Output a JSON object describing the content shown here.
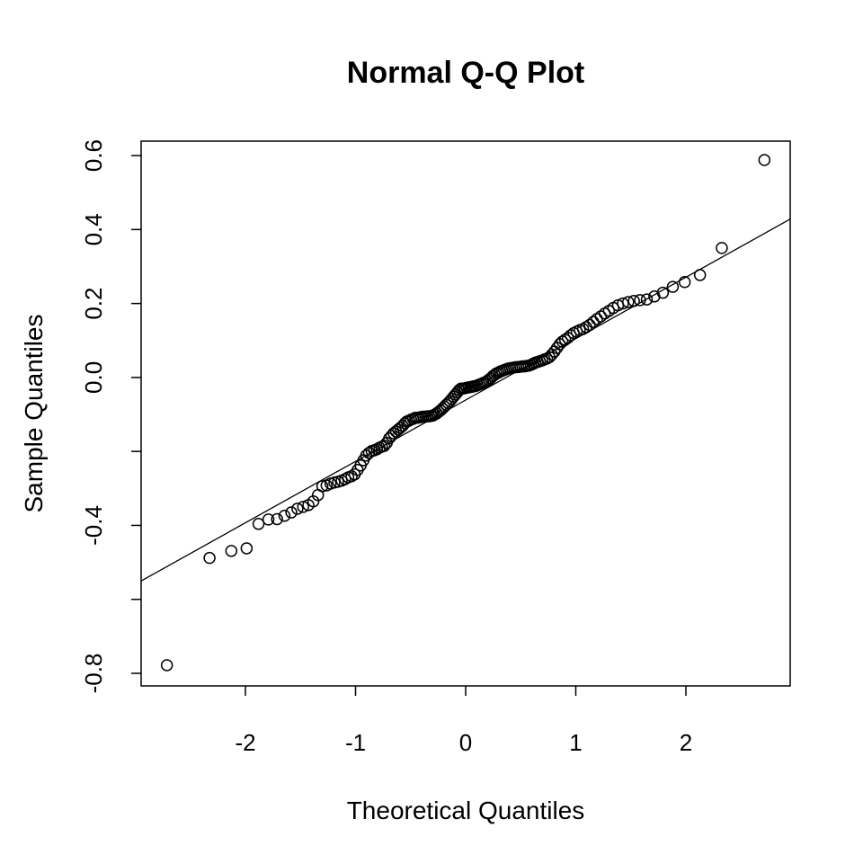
{
  "chart_data": {
    "type": "scatter",
    "title": "Normal Q-Q Plot",
    "x_label": "Theoretical Quantiles",
    "y_label": "Sample Quantiles",
    "xlim": [
      -2.947,
      2.947
    ],
    "ylim": [
      -0.834,
      0.639
    ],
    "xticks": [
      -2,
      -1,
      0,
      1,
      2
    ],
    "yticks": [
      {
        "value": -0.8,
        "label": "-0.8"
      },
      {
        "value": -0.6,
        "label": null
      },
      {
        "value": -0.4,
        "label": "-0.4"
      },
      {
        "value": -0.2,
        "label": null
      },
      {
        "value": 0,
        "label": "0.0"
      },
      {
        "value": 0.2,
        "label": "0.2"
      },
      {
        "value": 0.4,
        "label": "0.4"
      },
      {
        "value": 0.6,
        "label": "0.6"
      }
    ],
    "color": "#000000",
    "reference_line": {
      "intercept": -0.061,
      "slope": 0.166
    },
    "x": [
      -2.713,
      -2.326,
      -2.128,
      -1.989,
      -1.881,
      -1.791,
      -1.713,
      -1.645,
      -1.583,
      -1.528,
      -1.476,
      -1.428,
      -1.383,
      -1.341,
      -1.301,
      -1.263,
      -1.227,
      -1.192,
      -1.159,
      -1.126,
      -1.095,
      -1.066,
      -1.036,
      -1.008,
      -0.981,
      -0.954,
      -0.928,
      -0.903,
      -0.878,
      -0.854,
      -0.83,
      -0.806,
      -0.783,
      -0.761,
      -0.739,
      -0.717,
      -0.695,
      -0.674,
      -0.654,
      -0.633,
      -0.613,
      -0.593,
      -0.573,
      -0.553,
      -0.534,
      -0.515,
      -0.496,
      -0.477,
      -0.458,
      -0.44,
      -0.421,
      -0.403,
      -0.385,
      -0.367,
      -0.349,
      -0.332,
      -0.314,
      -0.297,
      -0.279,
      -0.262,
      -0.245,
      -0.228,
      -0.21,
      -0.193,
      -0.176,
      -0.159,
      -0.143,
      -0.126,
      -0.109,
      -0.092,
      -0.075,
      -0.059,
      -0.042,
      -0.025,
      -0.008,
      0.008,
      0.025,
      0.042,
      0.059,
      0.075,
      0.092,
      0.109,
      0.126,
      0.143,
      0.159,
      0.176,
      0.193,
      0.21,
      0.228,
      0.245,
      0.262,
      0.279,
      0.297,
      0.314,
      0.332,
      0.349,
      0.367,
      0.385,
      0.403,
      0.421,
      0.44,
      0.458,
      0.477,
      0.496,
      0.515,
      0.534,
      0.553,
      0.573,
      0.593,
      0.613,
      0.633,
      0.654,
      0.674,
      0.695,
      0.717,
      0.739,
      0.761,
      0.783,
      0.806,
      0.83,
      0.854,
      0.878,
      0.903,
      0.928,
      0.954,
      0.981,
      1.008,
      1.036,
      1.066,
      1.095,
      1.126,
      1.159,
      1.192,
      1.227,
      1.263,
      1.301,
      1.341,
      1.383,
      1.428,
      1.476,
      1.528,
      1.583,
      1.645,
      1.713,
      1.791,
      1.881,
      1.989,
      2.128,
      2.326,
      2.713
    ],
    "values": [
      -0.778,
      -0.488,
      -0.469,
      -0.462,
      -0.396,
      -0.384,
      -0.383,
      -0.374,
      -0.365,
      -0.355,
      -0.35,
      -0.345,
      -0.335,
      -0.318,
      -0.294,
      -0.292,
      -0.287,
      -0.284,
      -0.282,
      -0.279,
      -0.275,
      -0.27,
      -0.267,
      -0.262,
      -0.25,
      -0.238,
      -0.224,
      -0.211,
      -0.204,
      -0.199,
      -0.197,
      -0.194,
      -0.19,
      -0.187,
      -0.185,
      -0.177,
      -0.165,
      -0.158,
      -0.151,
      -0.146,
      -0.141,
      -0.136,
      -0.131,
      -0.124,
      -0.119,
      -0.117,
      -0.114,
      -0.112,
      -0.109,
      -0.109,
      -0.108,
      -0.107,
      -0.106,
      -0.106,
      -0.105,
      -0.105,
      -0.104,
      -0.103,
      -0.1,
      -0.097,
      -0.093,
      -0.089,
      -0.084,
      -0.079,
      -0.074,
      -0.069,
      -0.064,
      -0.058,
      -0.052,
      -0.046,
      -0.04,
      -0.034,
      -0.03,
      -0.03,
      -0.029,
      -0.028,
      -0.027,
      -0.026,
      -0.025,
      -0.024,
      -0.023,
      -0.021,
      -0.019,
      -0.017,
      -0.015,
      -0.013,
      -0.01,
      -0.006,
      -0.002,
      0.003,
      0.007,
      0.011,
      0.013,
      0.016,
      0.018,
      0.02,
      0.022,
      0.024,
      0.025,
      0.026,
      0.027,
      0.028,
      0.028,
      0.029,
      0.03,
      0.03,
      0.031,
      0.032,
      0.034,
      0.037,
      0.04,
      0.042,
      0.044,
      0.046,
      0.049,
      0.051,
      0.055,
      0.062,
      0.07,
      0.08,
      0.09,
      0.097,
      0.102,
      0.107,
      0.114,
      0.12,
      0.124,
      0.128,
      0.131,
      0.136,
      0.142,
      0.15,
      0.158,
      0.165,
      0.173,
      0.18,
      0.188,
      0.195,
      0.2,
      0.204,
      0.207,
      0.209,
      0.211,
      0.219,
      0.229,
      0.245,
      0.258,
      0.277,
      0.35,
      0.588
    ]
  }
}
